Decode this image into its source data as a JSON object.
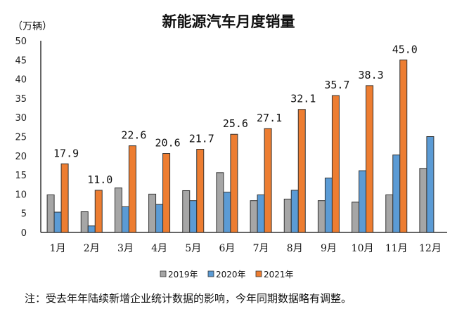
{
  "chart_data": {
    "type": "bar",
    "title": "新能源汽车月度销量",
    "ylabel": "（万辆）",
    "ylim": [
      0,
      50
    ],
    "yticks": [
      0,
      5,
      10,
      15,
      20,
      25,
      30,
      35,
      40,
      45,
      50
    ],
    "grid": false,
    "legend_position": "bottom",
    "categories": [
      "1月",
      "2月",
      "3月",
      "4月",
      "5月",
      "6月",
      "7月",
      "8月",
      "9月",
      "10月",
      "11月",
      "12月"
    ],
    "series": [
      {
        "name": "2019年",
        "color": "#a6a6a6",
        "values": [
          9.8,
          5.4,
          11.6,
          10.0,
          10.9,
          15.6,
          8.3,
          8.7,
          8.3,
          7.9,
          9.8,
          16.7
        ]
      },
      {
        "name": "2020年",
        "color": "#5b9bd5",
        "values": [
          5.3,
          1.7,
          6.7,
          7.3,
          8.3,
          10.5,
          9.8,
          11.0,
          14.2,
          16.1,
          20.2,
          25.0
        ]
      },
      {
        "name": "2021年",
        "color": "#ed7d31",
        "values": [
          17.9,
          11.0,
          22.6,
          20.6,
          21.7,
          25.6,
          27.1,
          32.1,
          35.7,
          38.3,
          45.0,
          null
        ],
        "data_labels": [
          "17.9",
          "11.0",
          "22.6",
          "20.6",
          "21.7",
          "25.6",
          "27.1",
          "32.1",
          "35.7",
          "38.3",
          "45.0",
          ""
        ]
      }
    ],
    "note": "注：受去年年陆续新增企业统计数据的影响，今年同期数据略有调整。"
  }
}
